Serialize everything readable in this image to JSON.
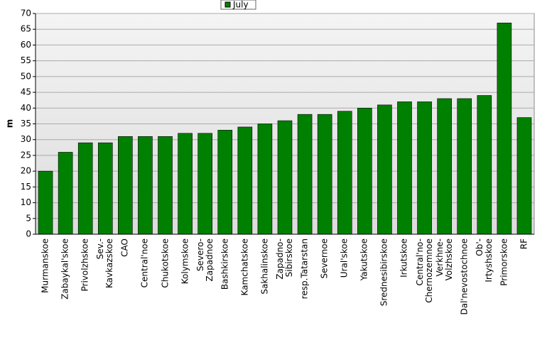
{
  "chart_data": {
    "type": "bar",
    "y_label": "m",
    "categories": [
      "Murmanskoe",
      "Zabaykal'skoe",
      "Privolzhskoe",
      "Sev.-\nKavkazskoe",
      "CAO",
      "Central'noe",
      "Chukotskoe",
      "Kolymskoe",
      "Severo-\nZapadnoe",
      "Bashkirskoe",
      "Kamchatskoe",
      "Sakhalinskoe",
      "Zapadno-\nSibirskoe",
      "resp.Tatarstan",
      "Severnoe",
      "Ural'skoe",
      "Yakutskoe",
      "Srednesibirskoe",
      "Irkutskoe",
      "Central'no-\nChernozemnoe",
      "Verkhne-\nVolzhskoe",
      "Dal'nevostochnoe",
      "Ob'-\nIrtyshskoe",
      "Primorskoe",
      "RF"
    ],
    "series": [
      {
        "name": "July",
        "color": "#008000",
        "values": [
          20,
          26,
          29,
          29,
          31,
          31,
          31,
          32,
          32,
          33,
          34,
          35,
          36,
          38,
          38,
          39,
          40,
          41,
          42,
          42,
          43,
          43,
          44,
          67,
          37
        ]
      }
    ],
    "ylim": [
      0,
      70
    ],
    "yticks": [
      0,
      5,
      10,
      15,
      20,
      25,
      30,
      35,
      40,
      45,
      50,
      55,
      60,
      65,
      70
    ],
    "grid": true
  }
}
